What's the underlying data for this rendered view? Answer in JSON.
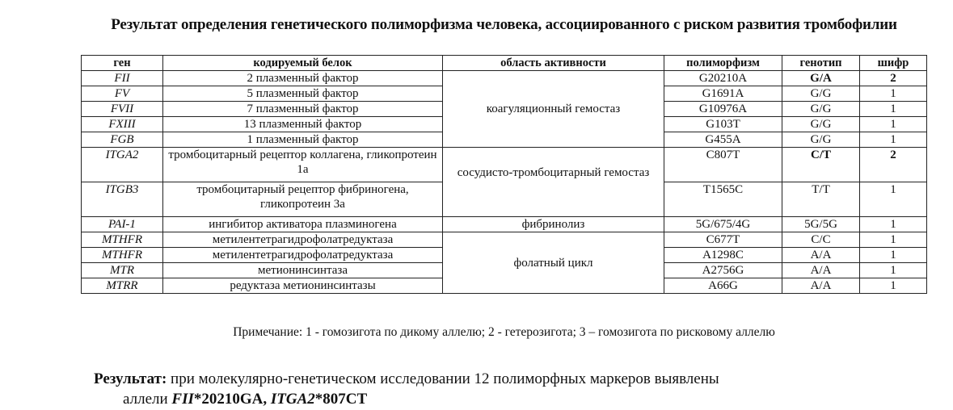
{
  "title": "Результат определения генетического полиморфизма человека, ассоциированного с риском развития тромбофилии",
  "table": {
    "headers": [
      "ген",
      "кодируемый белок",
      "область активности",
      "полиморфизм",
      "генотип",
      "шифр"
    ],
    "areas": [
      "коагуляционный гемостаз",
      "сосудисто-тромбоцитарный гемостаз",
      "фибринолиз",
      "фолатный цикл"
    ],
    "rows": [
      {
        "gene": "FII",
        "protein": "2 плазменный фактор",
        "polymorphism": "G20210A",
        "genotype": "G/A",
        "code": "2"
      },
      {
        "gene": "FV",
        "protein": "5 плазменный фактор",
        "polymorphism": "G1691A",
        "genotype": "G/G",
        "code": "1"
      },
      {
        "gene": "FVII",
        "protein": "7 плазменный фактор",
        "polymorphism": "G10976A",
        "genotype": "G/G",
        "code": "1"
      },
      {
        "gene": "FXIII",
        "protein": "13 плазменный фактор",
        "polymorphism": "G103T",
        "genotype": "G/G",
        "code": "1"
      },
      {
        "gene": "FGB",
        "protein": "1 плазменный фактор",
        "polymorphism": "G455A",
        "genotype": "G/G",
        "code": "1"
      },
      {
        "gene": "ITGA2",
        "protein": "тромбоцитарный рецептор коллагена, гликопротеин 1а",
        "polymorphism": "C807T",
        "genotype": "C/T",
        "code": "2"
      },
      {
        "gene": "ITGB3",
        "protein": "тромбоцитарный рецептор фибриногена, гликопротеин 3а",
        "polymorphism": "T1565C",
        "genotype": "T/T",
        "code": "1"
      },
      {
        "gene": "PAI-1",
        "protein": "ингибитор активатора плазминогена",
        "polymorphism": "5G/675/4G",
        "genotype": "5G/5G",
        "code": "1"
      },
      {
        "gene": "MTHFR",
        "protein": "метилентетрагидрофолатредуктаза",
        "polymorphism": "C677T",
        "genotype": "C/C",
        "code": "1"
      },
      {
        "gene": "MTHFR",
        "protein": "метилентетрагидрофолатредуктаза",
        "polymorphism": "A1298C",
        "genotype": "A/A",
        "code": "1"
      },
      {
        "gene": "MTR",
        "protein": "метионинсинтаза",
        "polymorphism": "A2756G",
        "genotype": "A/A",
        "code": "1"
      },
      {
        "gene": "MTRR",
        "protein": "редуктаза метионинсинтазы",
        "polymorphism": "A66G",
        "genotype": "A/A",
        "code": "1"
      }
    ]
  },
  "note": "Примечание: 1 - гомозигота по дикому аллелю; 2 - гетерозигота; 3 – гомозигота по рисковому аллелю",
  "result": {
    "label": "Результат:",
    "text": " при молекулярно-генетическом исследовании 12 полиморфных маркеров выявлены",
    "line2_prefix": "аллели ",
    "allele1_gene": "FII",
    "allele1_rest": "*20210GA, ",
    "allele2_gene": "ITGA2",
    "allele2_rest": "*807CT"
  }
}
